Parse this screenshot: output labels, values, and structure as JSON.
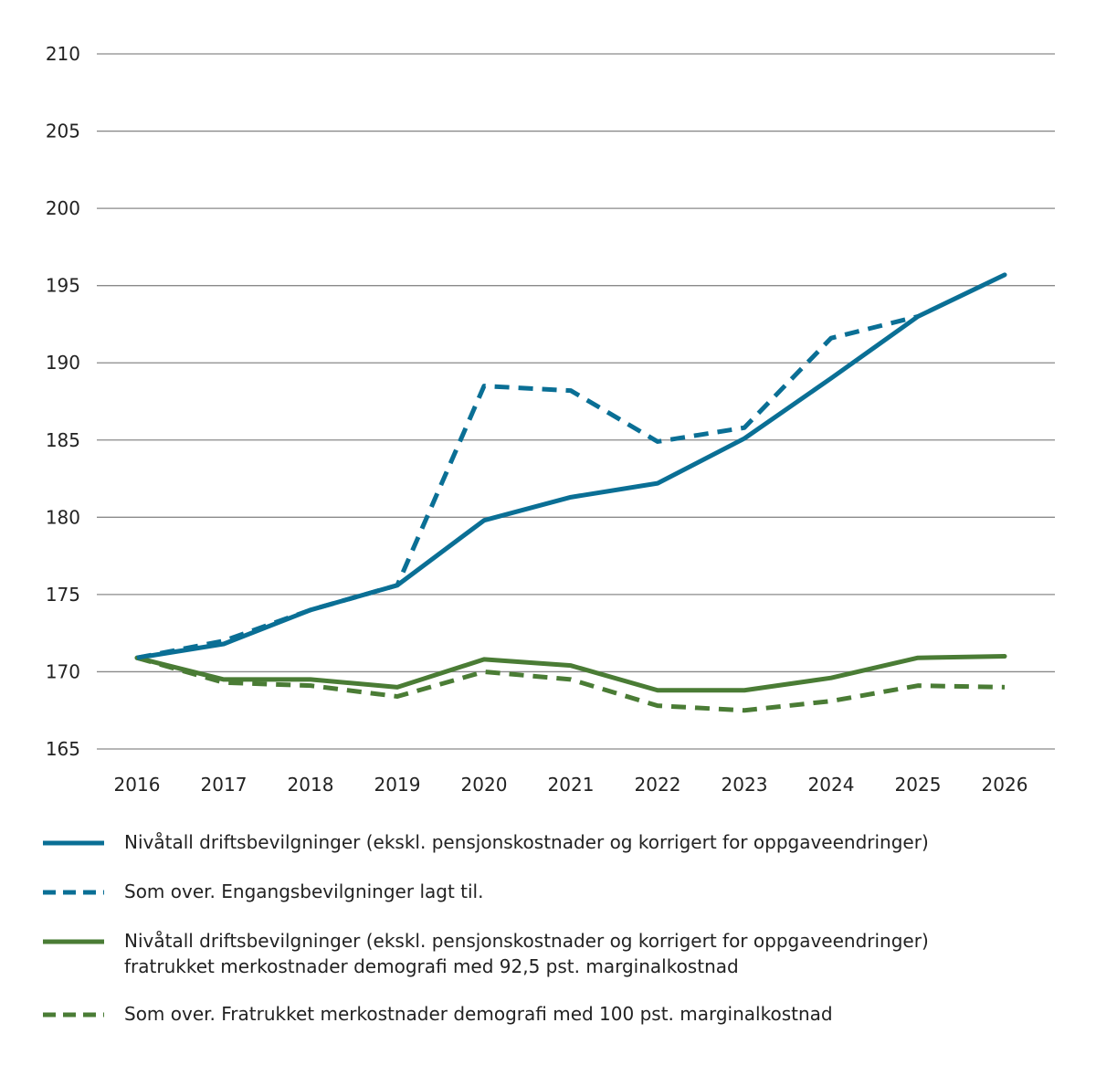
{
  "chart_data": {
    "type": "line",
    "x": [
      2016,
      2017,
      2018,
      2019,
      2020,
      2021,
      2022,
      2023,
      2024,
      2025,
      2026
    ],
    "ylim": [
      165,
      210
    ],
    "yticks": [
      165,
      170,
      175,
      180,
      185,
      190,
      195,
      200,
      205,
      210
    ],
    "grid": true,
    "legend_position": "bottom",
    "series": [
      {
        "name": "Nivåtall driftsbevilgninger (ekskl. pensjonskostnader og korrigert for oppgaveendringer)",
        "color": "#0a6f95",
        "dashed": false,
        "values": [
          170.9,
          171.8,
          174.0,
          175.6,
          179.8,
          181.3,
          182.2,
          185.1,
          189.0,
          193.0,
          195.7
        ]
      },
      {
        "name": "Som over. Engangsbevilgninger lagt til.",
        "color": "#0a6f95",
        "dashed": true,
        "values": [
          170.9,
          172.0,
          174.0,
          175.6,
          188.5,
          188.2,
          184.9,
          185.8,
          191.6,
          193.0,
          null
        ]
      },
      {
        "name": "Nivåtall driftsbevilgninger (ekskl. pensjonskostnader og korrigert for oppgaveendringer)\nfratrukket merkostnader demografi med 92,5 pst. marginalkostnad",
        "color": "#4a7c35",
        "dashed": false,
        "values": [
          170.9,
          169.5,
          169.5,
          169.0,
          170.8,
          170.4,
          168.8,
          168.8,
          169.6,
          170.9,
          171.0
        ]
      },
      {
        "name": "Som over. Fratrukket merkostnader demografi med 100 pst. marginalkostnad",
        "color": "#4a7c35",
        "dashed": true,
        "values": [
          170.9,
          169.3,
          169.1,
          168.4,
          170.0,
          169.5,
          167.8,
          167.5,
          168.1,
          169.1,
          169.0
        ]
      }
    ]
  }
}
